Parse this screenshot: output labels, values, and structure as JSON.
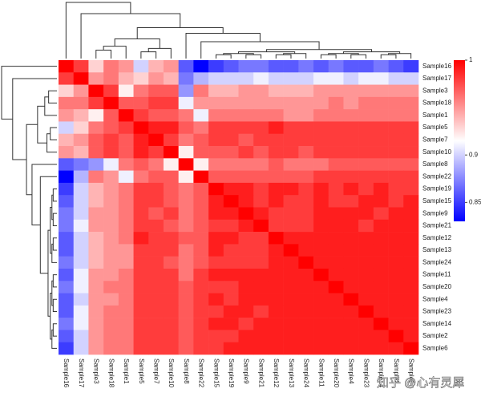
{
  "chart_data": {
    "type": "heatmap",
    "rows": [
      "Sample16",
      "Sample17",
      "Sample3",
      "Sample18",
      "Sample1",
      "Sample5",
      "Sample7",
      "Sample10",
      "Sample8",
      "Sample22",
      "Sample19",
      "Sample15",
      "Sample9",
      "Sample21",
      "Sample12",
      "Sample13",
      "Sample24",
      "Sample11",
      "Sample20",
      "Sample4",
      "Sample23",
      "Sample14",
      "Sample2",
      "Sample6"
    ],
    "columns": [
      "Sample16",
      "Sample17",
      "Sample3",
      "Sample18",
      "Sample1",
      "Sample5",
      "Sample7",
      "Sample10",
      "Sample8",
      "Sample22",
      "Sample15",
      "Sample19",
      "Sample9",
      "Sample21",
      "Sample12",
      "Sample13",
      "Sample24",
      "Sample11",
      "Sample20",
      "Sample4",
      "Sample23",
      "Sample14",
      "Sample2",
      "Sample6"
    ],
    "values": [
      [
        1,
        0.98,
        0.93,
        0.96,
        0.95,
        0.9,
        0.94,
        0.95,
        0.86,
        0.83,
        0.85,
        0.86,
        0.87,
        0.87,
        0.86,
        0.86,
        0.87,
        0.86,
        0.87,
        0.86,
        0.86,
        0.87,
        0.86,
        0.85
      ],
      [
        0.98,
        1,
        0.95,
        0.96,
        0.94,
        0.93,
        0.95,
        0.94,
        0.87,
        0.89,
        0.9,
        0.9,
        0.9,
        0.91,
        0.9,
        0.9,
        0.9,
        0.91,
        0.91,
        0.9,
        0.91,
        0.91,
        0.9,
        0.9
      ],
      [
        0.93,
        0.95,
        1,
        0.98,
        0.92,
        0.96,
        0.97,
        0.97,
        0.88,
        0.96,
        0.94,
        0.94,
        0.95,
        0.95,
        0.94,
        0.94,
        0.94,
        0.95,
        0.95,
        0.95,
        0.95,
        0.95,
        0.95,
        0.95
      ],
      [
        0.96,
        0.96,
        0.98,
        1,
        0.97,
        0.97,
        0.98,
        0.98,
        0.91,
        0.95,
        0.95,
        0.95,
        0.95,
        0.95,
        0.95,
        0.95,
        0.95,
        0.95,
        0.96,
        0.95,
        0.96,
        0.96,
        0.96,
        0.96
      ],
      [
        0.95,
        0.94,
        0.92,
        0.97,
        1,
        0.98,
        0.97,
        0.97,
        0.96,
        0.91,
        0.96,
        0.96,
        0.96,
        0.96,
        0.96,
        0.95,
        0.95,
        0.96,
        0.96,
        0.96,
        0.96,
        0.96,
        0.96,
        0.96
      ],
      [
        0.9,
        0.93,
        0.96,
        0.97,
        0.98,
        1,
        0.99,
        0.99,
        0.97,
        0.96,
        0.98,
        0.98,
        0.98,
        0.98,
        0.99,
        0.98,
        0.98,
        0.98,
        0.98,
        0.98,
        0.98,
        0.98,
        0.98,
        0.98
      ],
      [
        0.94,
        0.95,
        0.97,
        0.98,
        0.97,
        0.99,
        1,
        0.98,
        0.96,
        0.97,
        0.98,
        0.98,
        0.97,
        0.98,
        0.98,
        0.98,
        0.98,
        0.98,
        0.98,
        0.98,
        0.98,
        0.98,
        0.98,
        0.98
      ],
      [
        0.95,
        0.94,
        0.97,
        0.98,
        0.97,
        0.99,
        0.98,
        1,
        0.92,
        0.97,
        0.97,
        0.97,
        0.98,
        0.97,
        0.98,
        0.98,
        0.97,
        0.98,
        0.98,
        0.98,
        0.98,
        0.98,
        0.98,
        0.98
      ],
      [
        0.86,
        0.87,
        0.88,
        0.91,
        0.96,
        0.97,
        0.96,
        0.92,
        1,
        0.92,
        0.96,
        0.96,
        0.96,
        0.96,
        0.97,
        0.96,
        0.96,
        0.96,
        0.97,
        0.97,
        0.97,
        0.97,
        0.97,
        0.97
      ],
      [
        0.83,
        0.89,
        0.96,
        0.95,
        0.91,
        0.96,
        0.97,
        0.97,
        0.92,
        1,
        0.97,
        0.97,
        0.97,
        0.97,
        0.97,
        0.97,
        0.97,
        0.98,
        0.98,
        0.98,
        0.98,
        0.98,
        0.98,
        0.98
      ],
      [
        0.85,
        0.9,
        0.94,
        0.95,
        0.96,
        0.98,
        0.98,
        0.97,
        0.96,
        0.97,
        1,
        0.99,
        0.99,
        0.98,
        0.99,
        0.99,
        0.98,
        0.99,
        0.98,
        0.99,
        0.98,
        0.99,
        0.98,
        0.98
      ],
      [
        0.86,
        0.9,
        0.94,
        0.95,
        0.96,
        0.98,
        0.98,
        0.97,
        0.96,
        0.97,
        0.99,
        1,
        0.99,
        0.98,
        0.99,
        0.98,
        0.98,
        0.99,
        0.98,
        0.98,
        0.99,
        0.99,
        0.98,
        0.99
      ],
      [
        0.87,
        0.9,
        0.95,
        0.95,
        0.96,
        0.98,
        0.97,
        0.98,
        0.96,
        0.97,
        0.99,
        0.99,
        1,
        0.99,
        0.98,
        0.98,
        0.98,
        0.99,
        0.99,
        0.99,
        0.99,
        0.98,
        0.99,
        0.99
      ],
      [
        0.87,
        0.91,
        0.95,
        0.95,
        0.96,
        0.98,
        0.98,
        0.97,
        0.96,
        0.97,
        0.98,
        0.98,
        0.99,
        1,
        0.98,
        0.98,
        0.98,
        0.99,
        0.99,
        0.99,
        0.98,
        0.99,
        0.99,
        0.99
      ],
      [
        0.86,
        0.9,
        0.94,
        0.95,
        0.96,
        0.99,
        0.98,
        0.98,
        0.97,
        0.97,
        0.99,
        0.99,
        0.98,
        0.98,
        1,
        0.99,
        0.99,
        0.99,
        0.99,
        0.99,
        0.99,
        0.99,
        0.99,
        0.99
      ],
      [
        0.86,
        0.9,
        0.94,
        0.95,
        0.95,
        0.98,
        0.98,
        0.98,
        0.96,
        0.97,
        0.99,
        0.98,
        0.98,
        0.98,
        0.99,
        1,
        0.99,
        0.99,
        0.99,
        0.99,
        0.99,
        0.99,
        0.99,
        0.99
      ],
      [
        0.87,
        0.9,
        0.94,
        0.95,
        0.95,
        0.98,
        0.98,
        0.97,
        0.96,
        0.97,
        0.98,
        0.98,
        0.98,
        0.98,
        0.99,
        0.99,
        1,
        0.99,
        0.99,
        0.99,
        0.99,
        0.99,
        0.99,
        0.99
      ],
      [
        0.86,
        0.91,
        0.95,
        0.95,
        0.96,
        0.98,
        0.98,
        0.98,
        0.96,
        0.98,
        0.99,
        0.99,
        0.99,
        0.99,
        0.99,
        0.99,
        0.99,
        1,
        0.99,
        0.99,
        0.99,
        0.99,
        0.99,
        0.99
      ],
      [
        0.87,
        0.91,
        0.95,
        0.96,
        0.96,
        0.98,
        0.98,
        0.98,
        0.97,
        0.98,
        0.98,
        0.98,
        0.99,
        0.99,
        0.99,
        0.99,
        0.99,
        0.99,
        1,
        0.99,
        0.99,
        0.99,
        0.99,
        0.99
      ],
      [
        0.86,
        0.9,
        0.95,
        0.95,
        0.96,
        0.98,
        0.98,
        0.98,
        0.97,
        0.98,
        0.99,
        0.98,
        0.99,
        0.99,
        0.99,
        0.99,
        0.99,
        0.99,
        0.99,
        1,
        0.99,
        0.99,
        0.99,
        0.99
      ],
      [
        0.86,
        0.91,
        0.95,
        0.96,
        0.96,
        0.98,
        0.98,
        0.98,
        0.97,
        0.98,
        0.98,
        0.99,
        0.99,
        0.98,
        0.99,
        0.99,
        0.99,
        0.99,
        0.99,
        0.99,
        1,
        0.99,
        0.99,
        0.99
      ],
      [
        0.87,
        0.91,
        0.95,
        0.96,
        0.96,
        0.98,
        0.98,
        0.98,
        0.97,
        0.98,
        0.99,
        0.99,
        0.98,
        0.99,
        0.99,
        0.99,
        0.99,
        0.99,
        0.99,
        0.99,
        0.99,
        1,
        0.99,
        0.99
      ],
      [
        0.86,
        0.9,
        0.95,
        0.96,
        0.96,
        0.98,
        0.98,
        0.98,
        0.97,
        0.98,
        0.98,
        0.98,
        0.99,
        0.99,
        0.99,
        0.99,
        0.99,
        0.99,
        0.99,
        0.99,
        0.99,
        0.99,
        1,
        0.99
      ],
      [
        0.85,
        0.9,
        0.95,
        0.96,
        0.96,
        0.98,
        0.98,
        0.98,
        0.97,
        0.98,
        0.98,
        0.99,
        0.99,
        0.99,
        0.99,
        0.99,
        0.99,
        0.99,
        0.99,
        0.99,
        0.99,
        0.99,
        0.99,
        1
      ]
    ],
    "colors": [
      "#0000ff",
      "#ffffff",
      "#ff0000"
    ],
    "zlim": [
      0.83,
      1
    ],
    "zticks": [
      0.85,
      0.9,
      1
    ],
    "watermark": "知乎 @心有灵犀"
  }
}
